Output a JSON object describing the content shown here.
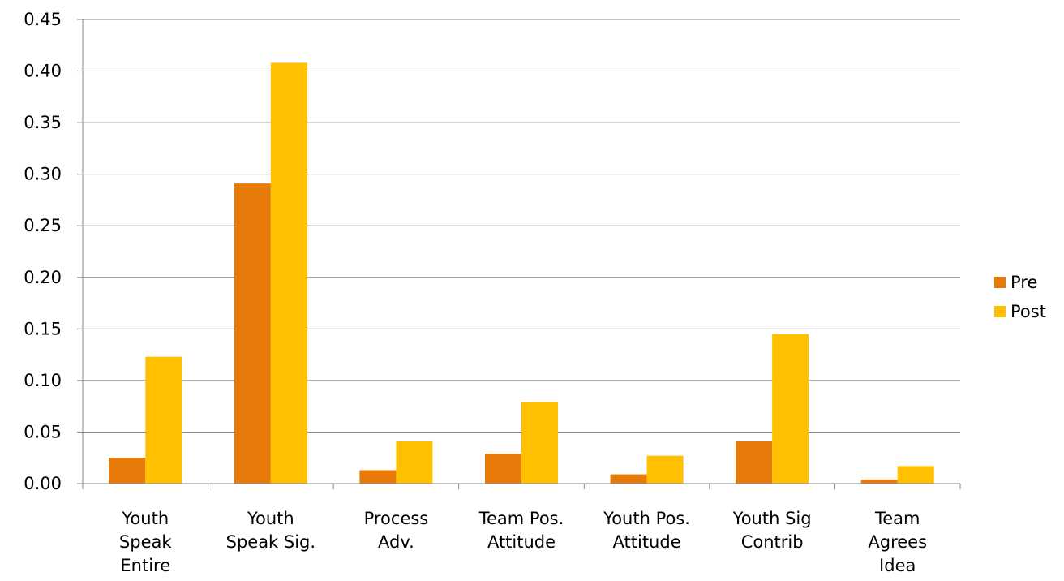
{
  "chart_data": {
    "type": "bar",
    "categories": [
      [
        "Youth",
        "Speak",
        "Entire"
      ],
      [
        "Youth",
        "Speak Sig."
      ],
      [
        "Process",
        "Adv."
      ],
      [
        "Team Pos.",
        "Attitude"
      ],
      [
        "Youth Pos.",
        "Attitude"
      ],
      [
        "Youth Sig",
        "Contrib"
      ],
      [
        "Team",
        "Agrees",
        "Idea"
      ]
    ],
    "series": [
      {
        "name": "Pre",
        "color": "#E87A0A",
        "values": [
          0.025,
          0.291,
          0.013,
          0.029,
          0.009,
          0.041,
          0.004
        ]
      },
      {
        "name": "Post",
        "color": "#FFC000",
        "values": [
          0.123,
          0.408,
          0.041,
          0.079,
          0.027,
          0.145,
          0.017
        ]
      }
    ],
    "ylim": [
      0,
      0.45
    ],
    "yticks": [
      "0.00",
      "0.05",
      "0.10",
      "0.15",
      "0.20",
      "0.25",
      "0.30",
      "0.35",
      "0.40",
      "0.45"
    ],
    "grid": true,
    "legend_position": "right",
    "title": "",
    "xlabel": "",
    "ylabel": ""
  }
}
